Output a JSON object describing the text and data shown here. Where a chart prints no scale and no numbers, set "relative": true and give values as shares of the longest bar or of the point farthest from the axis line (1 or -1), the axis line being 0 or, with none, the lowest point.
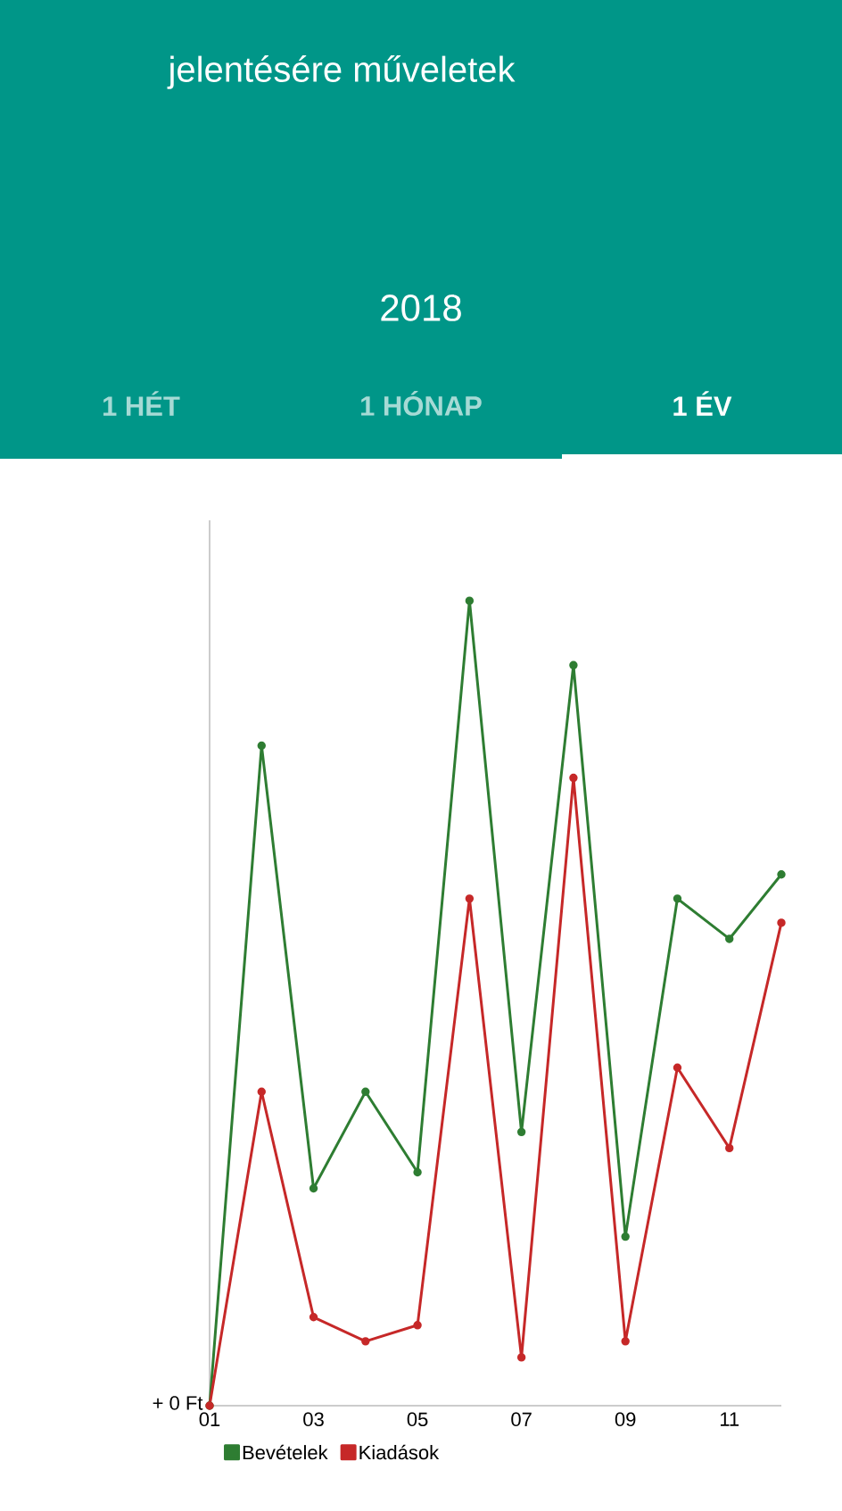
{
  "chart_data": {
    "type": "line",
    "title": "jelentésére műveletek",
    "subtitle": "2018",
    "relative": true,
    "marker": "circle",
    "legend": "bottom",
    "categories": [
      "01",
      null,
      "03",
      null,
      "05",
      null,
      "07",
      null,
      "09",
      null,
      "11",
      null
    ],
    "series": [
      {
        "name": "Bevételek",
        "color": "#2e7d32",
        "values": [
          0,
          0.82,
          0.27,
          0.39,
          0.29,
          1,
          0.34,
          0.92,
          0.21,
          0.63,
          0.58,
          0.66
        ]
      },
      {
        "name": "Kiadások",
        "color": "#c62828",
        "values": [
          0,
          0.39,
          0.11,
          0.08,
          0.1,
          0.63,
          0.06,
          0.78,
          0.08,
          0.42,
          0.32,
          0.6
        ]
      }
    ],
    "annotations": [
      "1 HÉT",
      "1 HÓNAP",
      "1 ÉV",
      "+ 0 Ft"
    ]
  }
}
